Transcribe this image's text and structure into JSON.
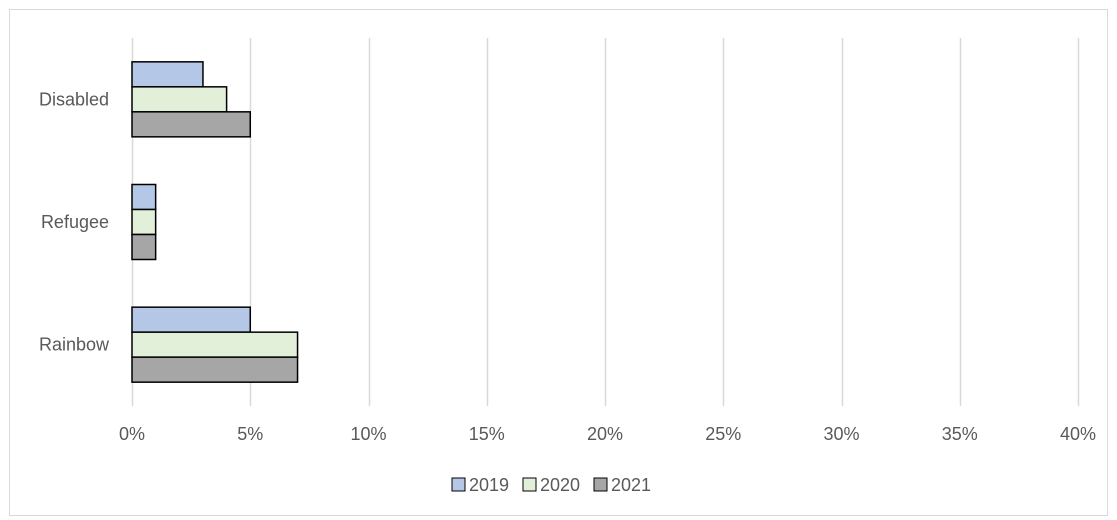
{
  "chart_data": {
    "type": "bar",
    "orientation": "horizontal",
    "categories": [
      "Disabled",
      "Refugee",
      "Rainbow"
    ],
    "series": [
      {
        "name": "2019",
        "values": [
          3,
          1,
          5
        ],
        "color": "#B4C7E7"
      },
      {
        "name": "2020",
        "values": [
          4,
          1,
          7
        ],
        "color": "#E2F0D9"
      },
      {
        "name": "2021",
        "values": [
          5,
          1,
          7
        ],
        "color": "#A6A6A6"
      }
    ],
    "title": "",
    "xlabel": "",
    "ylabel": "",
    "xlim": [
      0,
      40
    ],
    "x_ticks": [
      0,
      5,
      10,
      15,
      20,
      25,
      30,
      35,
      40
    ],
    "x_tick_labels": [
      "0%",
      "5%",
      "10%",
      "15%",
      "20%",
      "25%",
      "30%",
      "35%",
      "40%"
    ],
    "grid": true,
    "legend_position": "bottom",
    "bar_outline_color": "#000000",
    "gridline_color": "#D9D9D9",
    "text_color": "#595959",
    "border_color": "#D9D9D9"
  }
}
